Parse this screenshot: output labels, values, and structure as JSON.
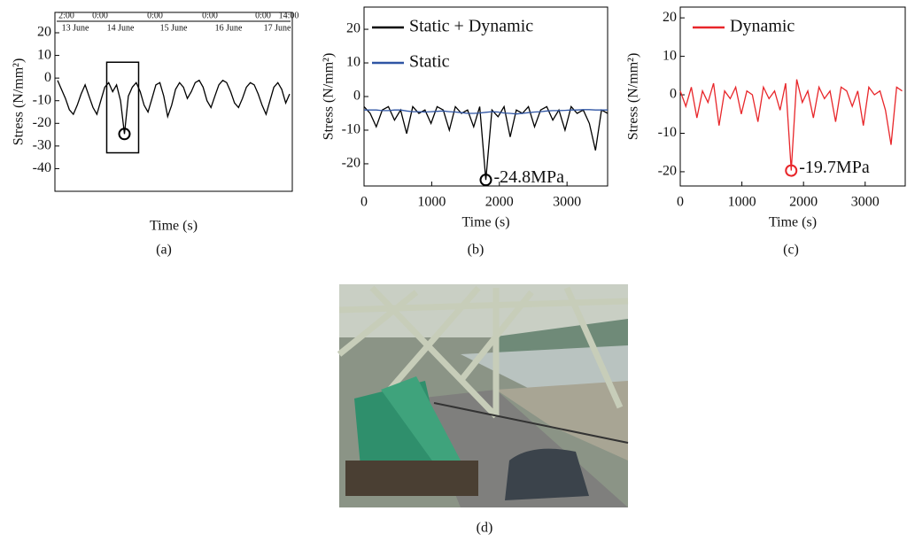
{
  "chart_data": [
    {
      "type": "line",
      "caption": "(a)",
      "ylabel": "Stress (N/mm²)",
      "xlabel": "Time (s)",
      "timeline_times": [
        "2:00",
        "0:00",
        "0:00",
        "0:00",
        "0:00",
        "14:00"
      ],
      "timeline_days": [
        "13 June",
        "14 June",
        "15 June",
        "16 June",
        "17 June"
      ],
      "ylim": [
        -50,
        29
      ],
      "yticks": [
        20,
        10,
        0,
        -10,
        -20,
        -30,
        -40
      ],
      "series": [
        {
          "color": "#000000",
          "values": [
            -1,
            -5,
            -9,
            -14,
            -16,
            -12,
            -7,
            -3,
            -8,
            -13,
            -16,
            -10,
            -4,
            -2,
            -6,
            -3,
            -10,
            -24.7,
            -8,
            -4,
            -2,
            -6,
            -12,
            -15,
            -9,
            -3,
            -2,
            -8,
            -17,
            -12,
            -5,
            -2,
            -4,
            -9,
            -6,
            -2,
            -1,
            -4,
            -10,
            -13,
            -8,
            -3,
            -1,
            -2,
            -6,
            -11,
            -13,
            -9,
            -4,
            -2,
            -3,
            -7,
            -12,
            -16,
            -10,
            -4,
            -2,
            -5,
            -11,
            -7
          ]
        }
      ]
    },
    {
      "type": "line",
      "caption": "(b)",
      "ylabel": "Stress (N/mm²)",
      "xlabel": "Time (s)",
      "annotation": "-24.8MPa",
      "xlim": [
        0,
        3600
      ],
      "xticks": [
        0,
        1000,
        2000,
        3000
      ],
      "ylim": [
        -26.6,
        26.6
      ],
      "yticks": [
        20,
        10,
        0,
        -10,
        -20
      ],
      "x": [
        0,
        90,
        180,
        270,
        360,
        450,
        540,
        630,
        720,
        810,
        900,
        990,
        1080,
        1170,
        1260,
        1350,
        1440,
        1530,
        1620,
        1710,
        1800,
        1890,
        1980,
        2070,
        2160,
        2250,
        2340,
        2430,
        2520,
        2610,
        2700,
        2790,
        2880,
        2970,
        3060,
        3150,
        3240,
        3330,
        3420,
        3510,
        3600
      ],
      "series": [
        {
          "name": "Static + Dynamic",
          "color": "#000000",
          "values": [
            -3,
            -5,
            -9,
            -4,
            -3,
            -7,
            -4,
            -11,
            -3,
            -5,
            -4,
            -8,
            -3,
            -4,
            -10,
            -3,
            -5,
            -4,
            -9,
            -3,
            -24.8,
            -4,
            -6,
            -3,
            -12,
            -4,
            -5,
            -3,
            -9,
            -4,
            -3,
            -7,
            -4,
            -10,
            -3,
            -5,
            -4,
            -8,
            -16,
            -4,
            -5
          ]
        },
        {
          "name": "Static",
          "color": "#2f55a4",
          "values": [
            -4,
            -4,
            -4,
            -4.2,
            -4.2,
            -4,
            -4,
            -4.3,
            -4.5,
            -4.5,
            -4.6,
            -4.5,
            -4.4,
            -4.3,
            -4.5,
            -4.6,
            -4.8,
            -5,
            -5,
            -4.9,
            -4.7,
            -4.5,
            -4.6,
            -4.9,
            -5,
            -5.2,
            -5,
            -4.8,
            -4.6,
            -4.5,
            -4.3,
            -4.2,
            -4.2,
            -4.1,
            -4,
            -4,
            -3.9,
            -3.9,
            -4,
            -4,
            -4
          ]
        }
      ]
    },
    {
      "type": "line",
      "caption": "(c)",
      "ylabel": "Stress (N/mm²)",
      "xlabel": "Time (s)",
      "annotation": "-19.7MPa",
      "xlim": [
        0,
        3650
      ],
      "xticks": [
        0,
        1000,
        2000,
        3000
      ],
      "ylim": [
        -23.7,
        22.8
      ],
      "yticks": [
        20,
        10,
        0,
        -10,
        -20
      ],
      "x": [
        0,
        90,
        180,
        270,
        360,
        450,
        540,
        630,
        720,
        810,
        900,
        990,
        1080,
        1170,
        1260,
        1350,
        1440,
        1530,
        1620,
        1710,
        1800,
        1890,
        1980,
        2070,
        2160,
        2250,
        2340,
        2430,
        2520,
        2610,
        2700,
        2790,
        2880,
        2970,
        3060,
        3150,
        3240,
        3330,
        3420,
        3510,
        3600
      ],
      "series": [
        {
          "name": "Dynamic",
          "color": "#e8262a",
          "values": [
            1,
            -3,
            2,
            -6,
            1,
            -2,
            3,
            -8,
            1,
            -1,
            2,
            -5,
            1,
            0,
            -7,
            2,
            -1,
            1,
            -4,
            3,
            -19.7,
            4,
            -2,
            1,
            -6,
            2,
            -1,
            1,
            -7,
            2,
            1,
            -3,
            1,
            -8,
            2,
            0,
            1,
            -4,
            -13,
            2,
            1
          ]
        }
      ]
    }
  ],
  "photo": {
    "caption": "(d)"
  }
}
